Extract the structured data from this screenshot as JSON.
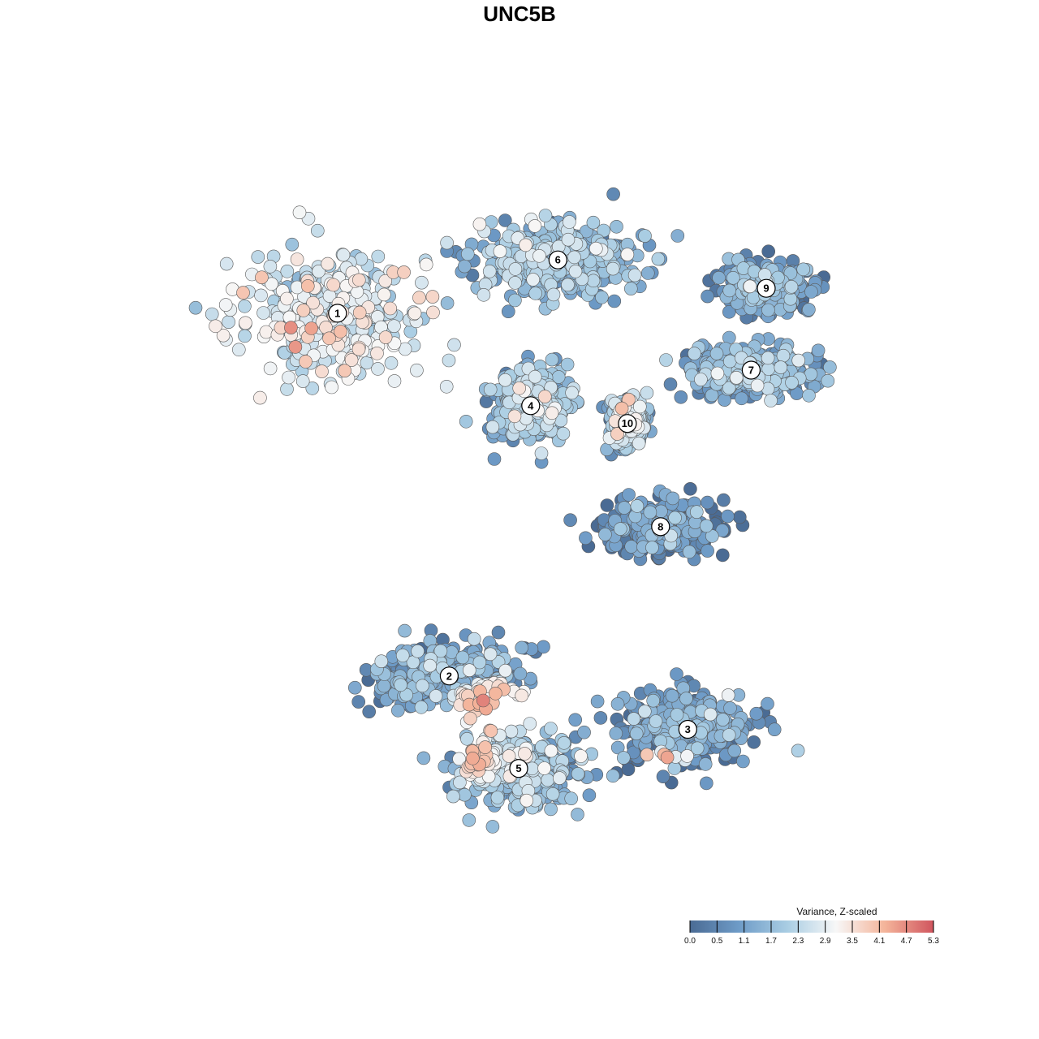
{
  "chart_data": {
    "type": "scatter",
    "title": "UNC5B",
    "xlabel": "",
    "ylabel": "",
    "grid": false,
    "legend": {
      "title": "Variance, Z-scaled",
      "placement": "bottom-right",
      "ticks": [
        "0.0",
        "0.5",
        "1.1",
        "1.7",
        "2.3",
        "2.9",
        "3.5",
        "4.1",
        "4.7",
        "5.3"
      ],
      "range": [
        0.0,
        5.3
      ],
      "colors": [
        "#4a6b94",
        "#6e9bc7",
        "#a9cde3",
        "#f7f7f7",
        "#f4b49a",
        "#d0555e"
      ]
    },
    "clusters": [
      {
        "id": "1",
        "label": "1",
        "center": [
          -8.2,
          6.3
        ],
        "spread": [
          2.6,
          1.6
        ],
        "mean": 2.6
      },
      {
        "id": "2",
        "label": "2",
        "center": [
          -4.5,
          -3.9
        ],
        "spread": [
          2.2,
          0.8
        ],
        "mean": 1.0
      },
      {
        "id": "3",
        "label": "3",
        "center": [
          3.4,
          -5.4
        ],
        "spread": [
          2.0,
          0.9
        ],
        "mean": 0.9
      },
      {
        "id": "4",
        "label": "4",
        "center": [
          -1.8,
          3.7
        ],
        "spread": [
          1.2,
          0.9
        ],
        "mean": 1.7
      },
      {
        "id": "5",
        "label": "5",
        "center": [
          -2.2,
          -6.5
        ],
        "spread": [
          1.8,
          0.9
        ],
        "mean": 1.7
      },
      {
        "id": "6",
        "label": "6",
        "center": [
          -0.9,
          7.8
        ],
        "spread": [
          2.4,
          0.9
        ],
        "mean": 1.6
      },
      {
        "id": "7",
        "label": "7",
        "center": [
          5.5,
          4.7
        ],
        "spread": [
          1.8,
          0.6
        ],
        "mean": 1.3
      },
      {
        "id": "8",
        "label": "8",
        "center": [
          2.5,
          0.3
        ],
        "spread": [
          1.6,
          0.7
        ],
        "mean": 0.4
      },
      {
        "id": "9",
        "label": "9",
        "center": [
          6.0,
          7.0
        ],
        "spread": [
          1.2,
          0.6
        ],
        "mean": 1.0
      },
      {
        "id": "10",
        "label": "10",
        "center": [
          1.4,
          3.2
        ],
        "spread": [
          0.5,
          0.6
        ],
        "mean": 1.9
      }
    ],
    "hotspots": [
      {
        "center": [
          -3.0,
          -4.8
        ],
        "spread": [
          1.2,
          0.6
        ],
        "value": 4.6
      },
      {
        "center": [
          -3.6,
          -6.2
        ],
        "spread": [
          0.6,
          0.5
        ],
        "value": 4.2
      },
      {
        "center": [
          2.4,
          -6.3
        ],
        "spread": [
          0.5,
          0.3
        ],
        "value": 4.8
      },
      {
        "center": [
          -7.6,
          5.2
        ],
        "spread": [
          1.0,
          0.6
        ],
        "value": 3.4
      }
    ],
    "xlim": [
      -14,
      11
    ],
    "ylim": [
      -10,
      11
    ]
  }
}
